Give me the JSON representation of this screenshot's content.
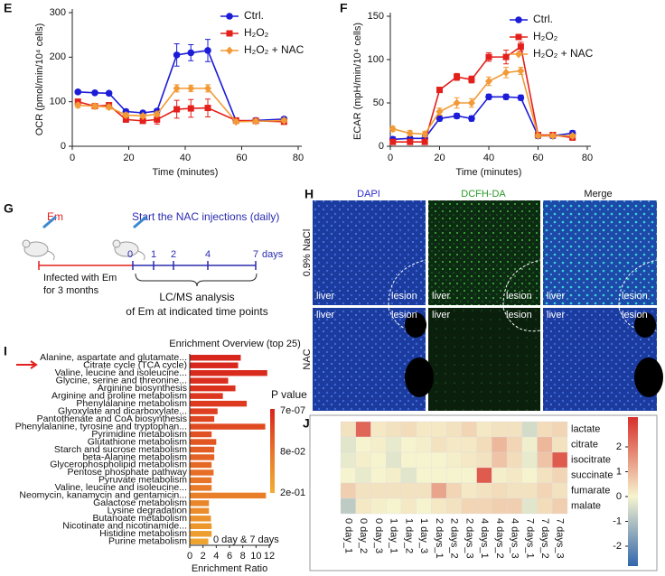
{
  "panel_labels": [
    "E",
    "F",
    "G",
    "H",
    "I",
    "J"
  ],
  "scheme": {
    "pathogen": "Em",
    "treatment": "Start the NAC injections (daily)",
    "infection": [
      "Infected with Em",
      "for 3 months"
    ],
    "timepoints": [
      "0",
      "1",
      "2",
      "4",
      "7"
    ],
    "unit": "days",
    "analysis": [
      "LC/MS analysis",
      "of Em at indicated time points"
    ]
  },
  "micrographs": {
    "columns": [
      "DAPI",
      "DCFH-DA",
      "Merge"
    ],
    "rows": [
      "0.9% NaCl",
      "NAC"
    ],
    "regions": [
      "liver",
      "lesion"
    ]
  },
  "chart_data": [
    {
      "type": "line",
      "xlabel": "Time (minutes)",
      "ylabel": "OCR (pmol/min/10⁴ cells)",
      "xlim": [
        0,
        80
      ],
      "xticks": [
        0,
        20,
        40,
        60,
        80
      ],
      "ylim": [
        0,
        300
      ],
      "yticks": [
        0,
        100,
        200,
        300
      ],
      "legend": "upper right",
      "x": [
        2,
        8,
        13,
        19,
        25,
        30,
        37,
        42,
        48,
        58,
        65,
        75
      ],
      "series": [
        {
          "name": "Ctrl.",
          "color": "#1c1cd8",
          "marker": "circle",
          "values": [
            122,
            120,
            119,
            78,
            75,
            79,
            205,
            210,
            215,
            57,
            58,
            61
          ],
          "errors": [
            4,
            4,
            4,
            5,
            4,
            5,
            25,
            18,
            25,
            5,
            5,
            5
          ]
        },
        {
          "name": "H₂O₂",
          "color": "#e3201b",
          "marker": "square",
          "values": [
            100,
            90,
            92,
            60,
            57,
            60,
            83,
            85,
            86,
            58,
            57,
            55
          ],
          "errors": [
            6,
            5,
            6,
            6,
            5,
            10,
            20,
            20,
            20,
            5,
            5,
            5
          ]
        },
        {
          "name": "H₂O₂ + NAC",
          "color": "#f29a35",
          "marker": "diamond",
          "values": [
            92,
            90,
            88,
            70,
            68,
            72,
            130,
            130,
            130,
            55,
            56,
            58
          ],
          "errors": [
            5,
            5,
            5,
            5,
            4,
            5,
            8,
            7,
            8,
            4,
            4,
            4
          ]
        }
      ]
    },
    {
      "type": "line",
      "xlabel": "Time (minutes)",
      "ylabel": "ECAR (mpH/min/10⁴ cells)",
      "xlim": [
        0,
        80
      ],
      "xticks": [
        0,
        20,
        40,
        60,
        80
      ],
      "ylim": [
        0,
        150
      ],
      "yticks": [
        0,
        50,
        100,
        150
      ],
      "legend": "upper right",
      "x": [
        1,
        8,
        14,
        20,
        27,
        33,
        40,
        47,
        53,
        60,
        66,
        74
      ],
      "series": [
        {
          "name": "Ctrl.",
          "color": "#1c1cd8",
          "marker": "circle",
          "values": [
            8,
            9,
            9,
            32,
            35,
            32,
            57,
            57,
            56,
            12,
            12,
            15
          ],
          "errors": [
            3,
            3,
            3,
            3,
            3,
            3,
            3,
            3,
            3,
            3,
            3,
            3
          ]
        },
        {
          "name": "H₂O₂",
          "color": "#e3201b",
          "marker": "square",
          "values": [
            5,
            5,
            5,
            65,
            80,
            77,
            103,
            103,
            115,
            13,
            13,
            10
          ],
          "errors": [
            2,
            2,
            2,
            3,
            4,
            4,
            5,
            8,
            5,
            2,
            2,
            2
          ]
        },
        {
          "name": "H₂O₂ + NAC",
          "color": "#f29a35",
          "marker": "diamond",
          "values": [
            20,
            15,
            14,
            40,
            50,
            50,
            75,
            85,
            87,
            12,
            12,
            12
          ],
          "errors": [
            3,
            3,
            3,
            4,
            6,
            5,
            5,
            6,
            4,
            2,
            2,
            2
          ]
        }
      ]
    },
    {
      "type": "bar",
      "title": "Enrichment Overview (top 25)",
      "xlabel": "Enrichment Ratio",
      "annotation": "0 day & 7 days",
      "xlim": [
        0,
        12
      ],
      "xticks": [
        0,
        2,
        4,
        6,
        8,
        10,
        12
      ],
      "categories": [
        "Alanine, aspartate and glutamate...",
        "Citrate cycle (TCA cycle)",
        "Valine, leucine and isoleucine...",
        "Glycine, serine and threonine...",
        "Arginine biosynthesis",
        "Arginine and proline metabolism",
        "Phenylalanine metabolism",
        "Glyoxylate and dicarboxylate...",
        "Pantothenate and CoA biosynthesis",
        "Phenylalanine, tyrosine and tryptophan...",
        "Pyrimidine metabolism",
        "Glutathione metabolism",
        "Starch and sucrose metabolism",
        "beta-Alanine metabolism",
        "Glycerophospholipid metabolism",
        "Pentose phosphate pathway",
        "Pyruvate metabolism",
        "Valine, leucine and isoleucine...",
        "Neomycin, kanamycin and gentamicin...",
        "Galactose metabolism",
        "Lysine degradation",
        "Butanoate metabolism",
        "Nicotinate and nicotinamide...",
        "Histidine metabolism",
        "Purine metabolism"
      ],
      "values": [
        7.7,
        7.3,
        11.7,
        5.8,
        6.9,
        5.0,
        8.6,
        4.2,
        3.7,
        11.4,
        3.3,
        4.0,
        3.7,
        3.7,
        3.3,
        3.6,
        3.3,
        3.3,
        11.5,
        2.9,
        2.9,
        3.2,
        3.3,
        3.3,
        2.8
      ],
      "colors": [
        "#d8261d",
        "#d8281d",
        "#d92a1e",
        "#da2e1e",
        "#db321e",
        "#dc361f",
        "#dd3a1f",
        "#de3f20",
        "#df4420",
        "#e04a21",
        "#e15022",
        "#e25622",
        "#e35c23",
        "#e46224",
        "#e56825",
        "#e66e26",
        "#e77427",
        "#e87a28",
        "#e98029",
        "#ea862a",
        "#eb8c2b",
        "#ec922c",
        "#ed982d",
        "#ee9e2e",
        "#efa42f"
      ],
      "colorbar": {
        "title": "P value",
        "labels": [
          "7e-07",
          "8e-02",
          "2e-01"
        ],
        "cmap": [
          "#d8241c",
          "#e8742a",
          "#f2ad33"
        ]
      }
    },
    {
      "type": "heatmap",
      "rows": [
        "lactate",
        "citrate",
        "isocitrate",
        "succinate",
        "fumarate",
        "malate"
      ],
      "columns": [
        "0 day_1",
        "0 day_2",
        "0 day_3",
        "1 day_1",
        "1 day_2",
        "1 day_3",
        "2 days_1",
        "2 days_2",
        "2 days_3",
        "4 days_1",
        "4 days_2",
        "4 days_3",
        "7 days_1",
        "7 days_2",
        "7 days_3"
      ],
      "values": [
        [
          0.3,
          2.3,
          0.2,
          0.3,
          0.4,
          0.2,
          0.2,
          0.3,
          0.5,
          0.2,
          0.3,
          0.3,
          -0.5,
          0.4,
          0.5
        ],
        [
          -0.3,
          0,
          0.1,
          -0.2,
          0,
          0.1,
          0.3,
          0.2,
          0.2,
          0.4,
          1.0,
          0.5,
          -0.1,
          1.0,
          0.3
        ],
        [
          -0.2,
          0.1,
          0,
          -0.3,
          0,
          0,
          0,
          0.1,
          0.2,
          0.3,
          0.8,
          0.4,
          -0.2,
          0.8,
          2.5
        ],
        [
          0,
          -0.2,
          0,
          0.1,
          -0.3,
          0,
          0,
          0,
          0,
          2.5,
          0.1,
          0.2,
          0,
          0.3,
          0.5
        ],
        [
          0.6,
          0.3,
          0.3,
          0.3,
          0.3,
          0.3,
          1.3,
          0.5,
          0.2,
          0.3,
          0.4,
          0.3,
          0.3,
          0.5,
          0.3
        ],
        [
          -0.8,
          0.2,
          0.1,
          0,
          0.2,
          0,
          0.2,
          0.3,
          0.5,
          0.5,
          0.6,
          0.6,
          -0.3,
          0.4,
          0.6
        ]
      ],
      "zlim": [
        -2.8,
        3.2
      ],
      "zticks": [
        -2,
        -1,
        0,
        1,
        2
      ],
      "cmap": [
        "#3266ad",
        "#f6f4cf",
        "#d7302a"
      ]
    }
  ]
}
